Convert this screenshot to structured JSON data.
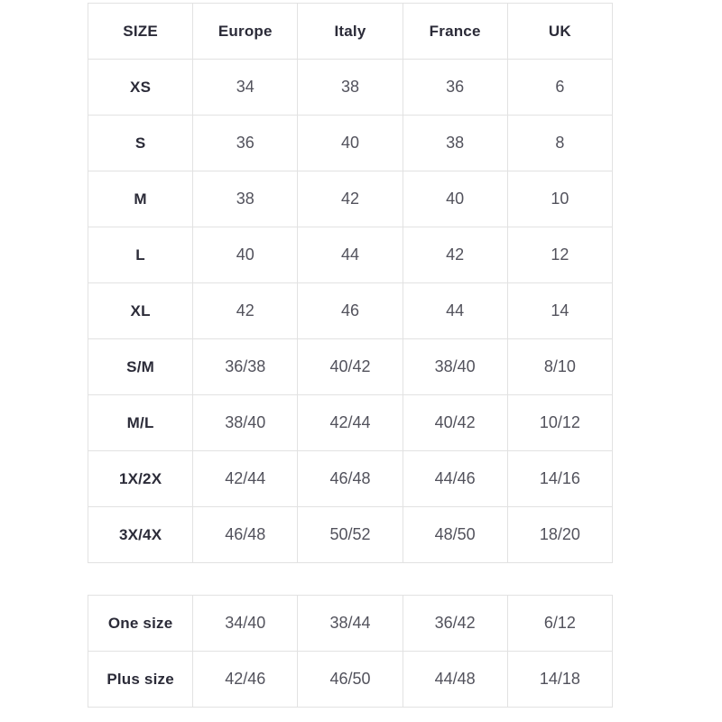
{
  "colors": {
    "border_color": "#e2e2e2",
    "header_text": "#2b2b38",
    "cell_text": "#52525c",
    "page_bg": "#ffffff"
  },
  "main_table": {
    "headers": [
      "SIZE",
      "Europe",
      "Italy",
      "France",
      "UK"
    ],
    "rows": [
      [
        "XS",
        "34",
        "38",
        "36",
        "6"
      ],
      [
        "S",
        "36",
        "40",
        "38",
        "8"
      ],
      [
        "M",
        "38",
        "42",
        "40",
        "10"
      ],
      [
        "L",
        "40",
        "44",
        "42",
        "12"
      ],
      [
        "XL",
        "42",
        "46",
        "44",
        "14"
      ],
      [
        "S/M",
        "36/38",
        "40/42",
        "38/40",
        "8/10"
      ],
      [
        "M/L",
        "38/40",
        "42/44",
        "40/42",
        "10/12"
      ],
      [
        "1X/2X",
        "42/44",
        "46/48",
        "44/46",
        "14/16"
      ],
      [
        "3X/4X",
        "46/48",
        "50/52",
        "48/50",
        "18/20"
      ]
    ]
  },
  "secondary_table": {
    "rows": [
      [
        "One size",
        "34/40",
        "38/44",
        "36/42",
        "6/12"
      ],
      [
        "Plus size",
        "42/46",
        "46/50",
        "44/48",
        "14/18"
      ]
    ]
  }
}
